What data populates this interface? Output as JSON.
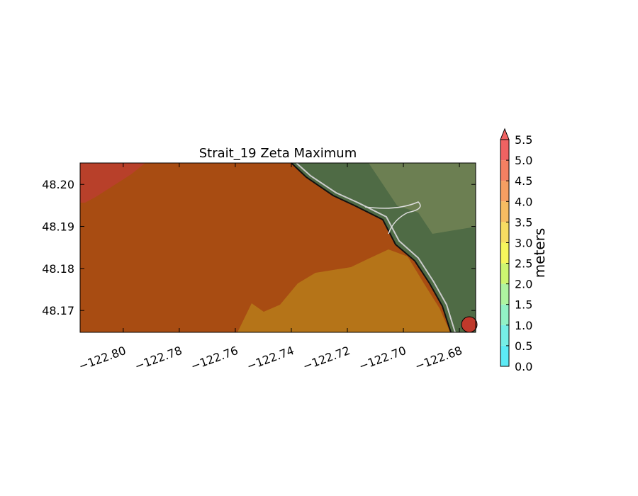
{
  "chart_data": {
    "type": "map",
    "title": "Strait_19 Zeta Maximum",
    "xlim": [
      -122.8154,
      -122.6742
    ],
    "ylim": [
      48.1648,
      48.2051
    ],
    "xticks": [
      {
        "value": -122.8,
        "label": "−122.80"
      },
      {
        "value": -122.78,
        "label": "−122.78"
      },
      {
        "value": -122.76,
        "label": "−122.76"
      },
      {
        "value": -122.74,
        "label": "−122.74"
      },
      {
        "value": -122.72,
        "label": "−122.72"
      },
      {
        "value": -122.7,
        "label": "−122.70"
      },
      {
        "value": -122.68,
        "label": "−122.68"
      }
    ],
    "yticks": [
      {
        "value": 48.17,
        "label": "48.17"
      },
      {
        "value": 48.18,
        "label": "48.18"
      },
      {
        "value": 48.19,
        "label": "48.19"
      },
      {
        "value": 48.2,
        "label": "48.20"
      }
    ],
    "colorbar": {
      "label": "meters",
      "lim": [
        0,
        5.5
      ],
      "ticks": [
        {
          "value": 0,
          "label": "0.0"
        },
        {
          "value": 0.5,
          "label": "0.5"
        },
        {
          "value": 1,
          "label": "1.0"
        },
        {
          "value": 1.5,
          "label": "1.5"
        },
        {
          "value": 2,
          "label": "2.0"
        },
        {
          "value": 2.5,
          "label": "2.5"
        },
        {
          "value": 3,
          "label": "3.0"
        },
        {
          "value": 3.5,
          "label": "3.5"
        },
        {
          "value": 4,
          "label": "4.0"
        },
        {
          "value": 4.5,
          "label": "4.5"
        },
        {
          "value": 5,
          "label": "5.0"
        },
        {
          "value": 5.5,
          "label": "5.5"
        }
      ],
      "colors": [
        "#5ceaf5",
        "#76eee6",
        "#92f2c6",
        "#aef4a0",
        "#cdf570",
        "#f6f65c",
        "#f6dc62",
        "#f6bc62",
        "#f69e62",
        "#f48062",
        "#f06262"
      ],
      "extend_color": "#f06262"
    }
  }
}
